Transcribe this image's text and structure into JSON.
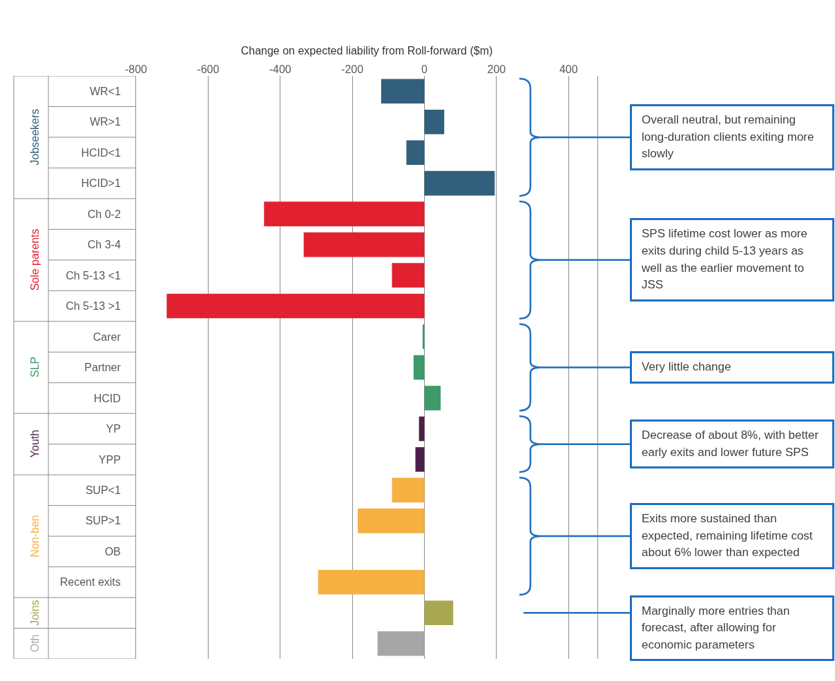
{
  "chart_data": {
    "type": "bar",
    "orientation": "horizontal",
    "xlabel": "Change on expected liability from Roll-forward ($m)",
    "categories": [
      "WR<1",
      "WR>1",
      "HCID<1",
      "HCID>1",
      "Ch 0-2",
      "Ch 3-4",
      "Ch 5-13 <1",
      "Ch 5-13 >1",
      "Carer",
      "Partner",
      "HCID",
      "YP",
      "YPP",
      "SUP<1",
      "SUP>1",
      "OB",
      "Recent exits",
      null,
      null
    ],
    "series": [
      {
        "name": "Jobseekers",
        "color": "#325f7b",
        "values": [
          -120,
          55,
          -50,
          195,
          null,
          null,
          null,
          null,
          null,
          null,
          null,
          null,
          null,
          null,
          null,
          null,
          null,
          null,
          null
        ]
      },
      {
        "name": "Sole parents",
        "color": "#e1212f",
        "values": [
          null,
          null,
          null,
          null,
          -445,
          -335,
          -90,
          -715,
          null,
          null,
          null,
          null,
          null,
          null,
          null,
          null,
          null,
          null,
          null
        ]
      },
      {
        "name": "SLP",
        "color": "#3f9a69",
        "values": [
          null,
          null,
          null,
          null,
          null,
          null,
          null,
          null,
          -5,
          -30,
          45,
          null,
          null,
          null,
          null,
          null,
          null,
          null,
          null
        ]
      },
      {
        "name": "Youth",
        "color": "#4b1f48",
        "values": [
          null,
          null,
          null,
          null,
          null,
          null,
          null,
          null,
          null,
          null,
          null,
          -15,
          -25,
          null,
          null,
          null,
          null,
          null,
          null
        ]
      },
      {
        "name": "Non-ben",
        "color": "#f7b042",
        "values": [
          null,
          null,
          null,
          null,
          null,
          null,
          null,
          null,
          null,
          null,
          null,
          null,
          null,
          -90,
          -185,
          0,
          -295,
          null,
          null
        ]
      },
      {
        "name": "Joins",
        "color": "#a9a852",
        "values": [
          null,
          null,
          null,
          null,
          null,
          null,
          null,
          null,
          null,
          null,
          null,
          null,
          null,
          null,
          null,
          null,
          null,
          80,
          null
        ]
      },
      {
        "name": "Oth",
        "color": "#a6a6a6",
        "values": [
          null,
          null,
          null,
          null,
          null,
          null,
          null,
          null,
          null,
          null,
          null,
          null,
          null,
          null,
          null,
          null,
          null,
          null,
          -130
        ]
      }
    ],
    "xlim": [
      -800,
      480
    ],
    "xticks": [
      -800,
      -600,
      -400,
      -200,
      0,
      200,
      400
    ],
    "grid": "x",
    "legend": false,
    "annotations": [
      "Overall neutral, but remaining long-duration clients exiting more slowly",
      "SPS lifetime cost lower  as more exits during child 5-13 years as well as the earlier movement to JSS",
      "Very little change",
      "Decrease of about 8%, with better early exits and lower future SPS",
      "Exits more sustained than expected, remaining lifetime cost about 6% lower than expected",
      "Marginally more entries than forecast, after allowing for economic parameters"
    ]
  }
}
